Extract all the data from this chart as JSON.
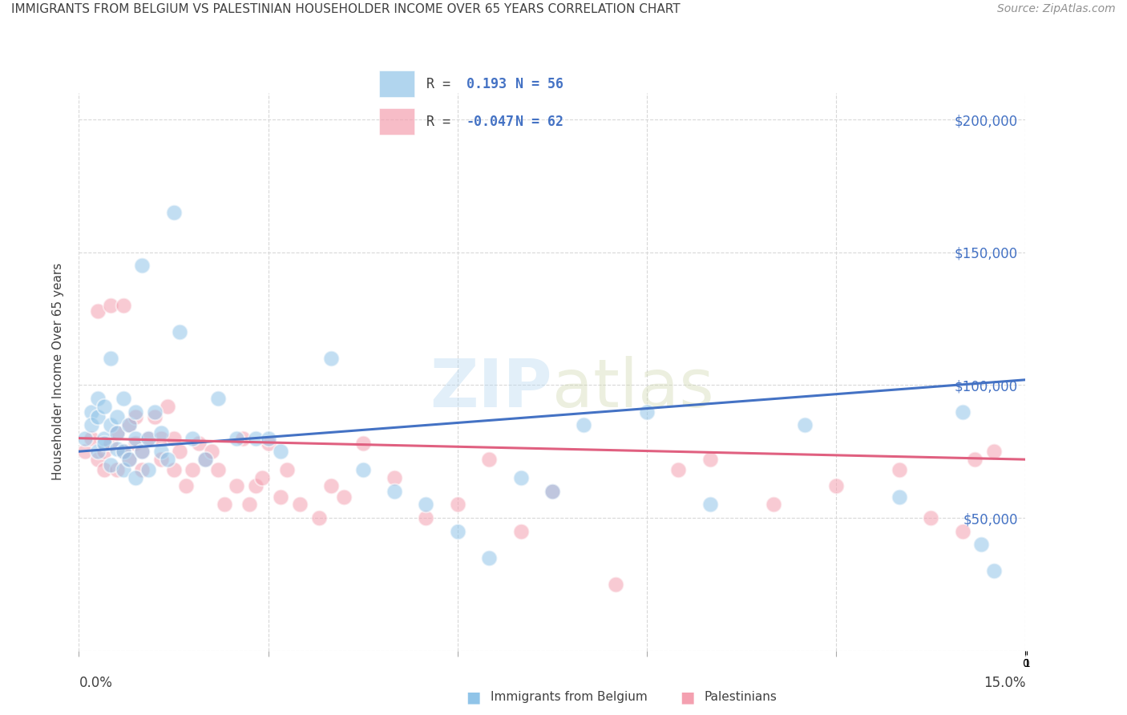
{
  "title": "IMMIGRANTS FROM BELGIUM VS PALESTINIAN HOUSEHOLDER INCOME OVER 65 YEARS CORRELATION CHART",
  "source": "Source: ZipAtlas.com",
  "ylabel": "Householder Income Over 65 years",
  "xlim": [
    0.0,
    0.15
  ],
  "ylim": [
    0,
    210000
  ],
  "yticks": [
    0,
    50000,
    100000,
    150000,
    200000
  ],
  "xtick_positions": [
    0.0,
    0.03,
    0.06,
    0.09,
    0.12,
    0.15
  ],
  "r_blue": 0.193,
  "n_blue": 56,
  "r_pink": -0.047,
  "n_pink": 62,
  "background_color": "#ffffff",
  "grid_color": "#d8d8d8",
  "blue_color": "#90c4e8",
  "pink_color": "#f4a0b0",
  "line_blue": "#4472c4",
  "line_pink": "#e06080",
  "title_color": "#404040",
  "source_color": "#909090",
  "blue_scatter_x": [
    0.001,
    0.002,
    0.002,
    0.003,
    0.003,
    0.003,
    0.004,
    0.004,
    0.004,
    0.005,
    0.005,
    0.005,
    0.006,
    0.006,
    0.006,
    0.007,
    0.007,
    0.007,
    0.008,
    0.008,
    0.009,
    0.009,
    0.009,
    0.01,
    0.01,
    0.011,
    0.011,
    0.012,
    0.013,
    0.013,
    0.014,
    0.015,
    0.016,
    0.018,
    0.02,
    0.022,
    0.025,
    0.028,
    0.03,
    0.032,
    0.04,
    0.045,
    0.05,
    0.055,
    0.06,
    0.065,
    0.07,
    0.075,
    0.08,
    0.09,
    0.1,
    0.115,
    0.13,
    0.14,
    0.143,
    0.145
  ],
  "blue_scatter_y": [
    80000,
    90000,
    85000,
    95000,
    88000,
    75000,
    80000,
    92000,
    78000,
    110000,
    85000,
    70000,
    82000,
    76000,
    88000,
    68000,
    75000,
    95000,
    85000,
    72000,
    80000,
    65000,
    90000,
    145000,
    75000,
    80000,
    68000,
    90000,
    75000,
    82000,
    72000,
    165000,
    120000,
    80000,
    72000,
    95000,
    80000,
    80000,
    80000,
    75000,
    110000,
    68000,
    60000,
    55000,
    45000,
    35000,
    65000,
    60000,
    85000,
    90000,
    55000,
    85000,
    58000,
    90000,
    40000,
    30000
  ],
  "pink_scatter_x": [
    0.001,
    0.002,
    0.003,
    0.003,
    0.004,
    0.004,
    0.005,
    0.005,
    0.006,
    0.006,
    0.007,
    0.007,
    0.008,
    0.008,
    0.009,
    0.009,
    0.01,
    0.01,
    0.011,
    0.012,
    0.013,
    0.013,
    0.014,
    0.015,
    0.015,
    0.016,
    0.017,
    0.018,
    0.019,
    0.02,
    0.021,
    0.022,
    0.023,
    0.025,
    0.026,
    0.027,
    0.028,
    0.029,
    0.03,
    0.032,
    0.033,
    0.035,
    0.038,
    0.04,
    0.042,
    0.045,
    0.05,
    0.055,
    0.06,
    0.065,
    0.07,
    0.075,
    0.085,
    0.095,
    0.1,
    0.11,
    0.12,
    0.13,
    0.135,
    0.14,
    0.142,
    0.145
  ],
  "pink_scatter_y": [
    75000,
    80000,
    128000,
    72000,
    75000,
    68000,
    130000,
    78000,
    82000,
    68000,
    130000,
    75000,
    85000,
    72000,
    78000,
    88000,
    75000,
    68000,
    80000,
    88000,
    72000,
    80000,
    92000,
    68000,
    80000,
    75000,
    62000,
    68000,
    78000,
    72000,
    75000,
    68000,
    55000,
    62000,
    80000,
    55000,
    62000,
    65000,
    78000,
    58000,
    68000,
    55000,
    50000,
    62000,
    58000,
    78000,
    65000,
    50000,
    55000,
    72000,
    45000,
    60000,
    25000,
    68000,
    72000,
    55000,
    62000,
    68000,
    50000,
    45000,
    72000,
    75000
  ]
}
